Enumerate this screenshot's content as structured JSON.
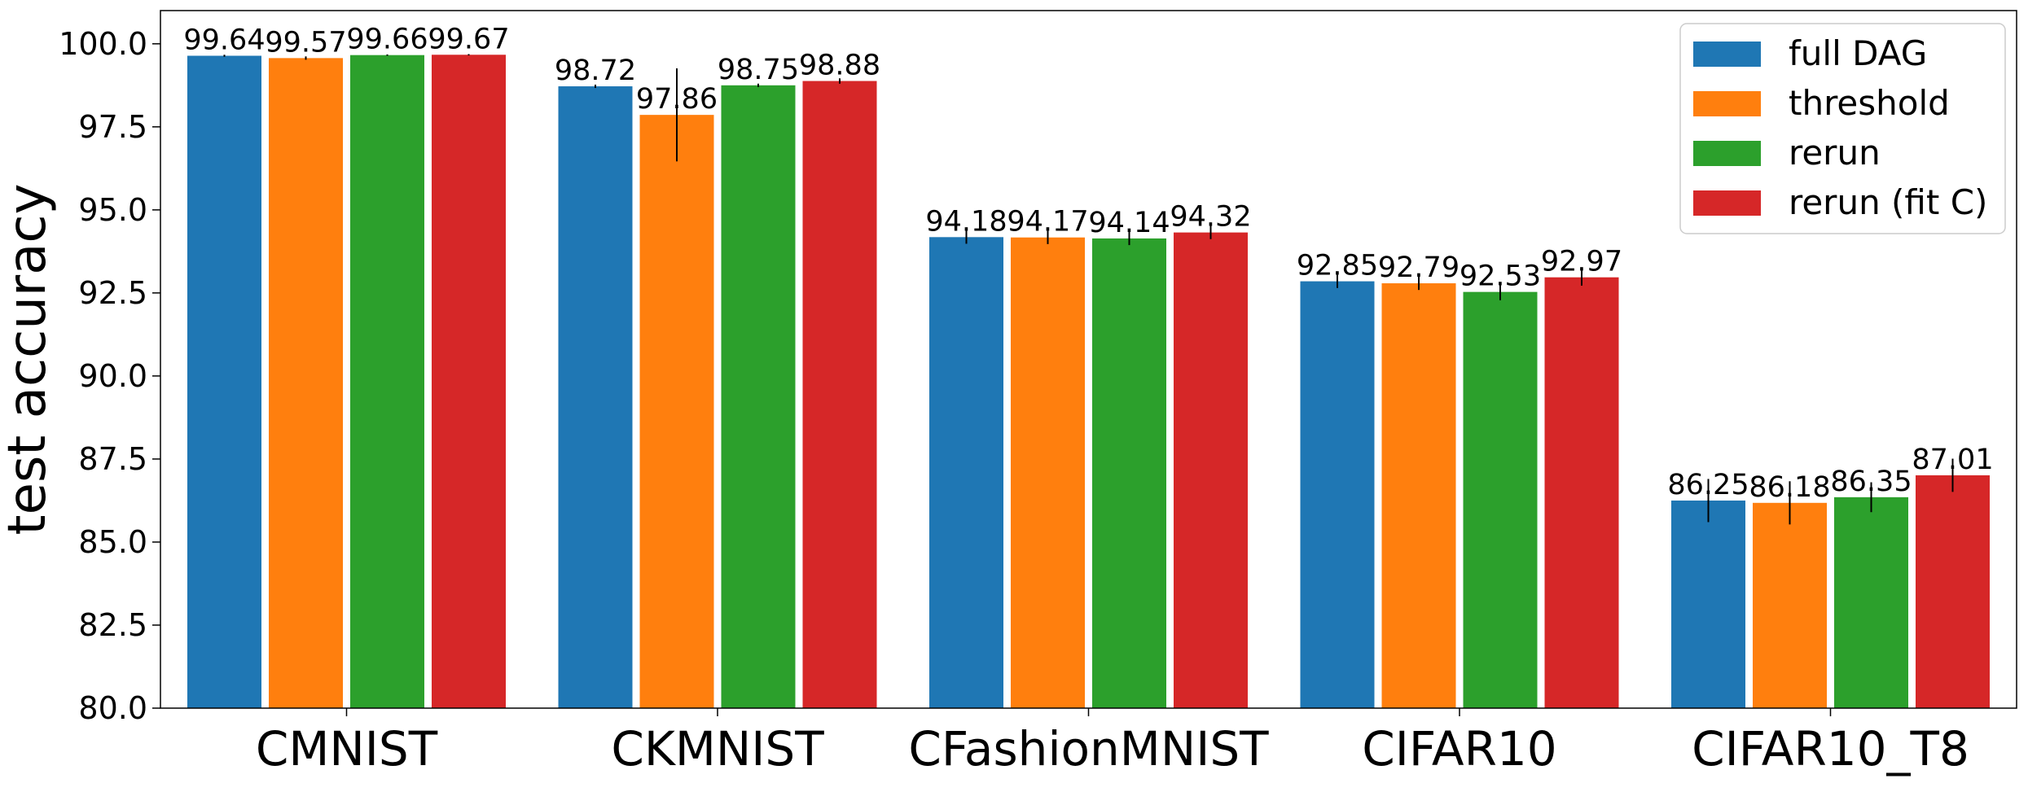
{
  "chart_data": {
    "type": "bar",
    "title": "",
    "xlabel": "",
    "ylabel": "test accuracy",
    "ylim": [
      80.0,
      101.0
    ],
    "yticks": [
      "80.0",
      "82.5",
      "85.0",
      "87.5",
      "90.0",
      "92.5",
      "95.0",
      "97.5",
      "100.0"
    ],
    "grid": false,
    "legend_position": "top-right",
    "categories": [
      "CMNIST",
      "CKMNIST",
      "CFashionMNIST",
      "CIFAR10",
      "CIFAR10_T8"
    ],
    "series": [
      {
        "name": "full DAG",
        "color": "#1f77b4",
        "values": [
          99.64,
          98.72,
          94.18,
          92.85,
          86.25
        ],
        "labels": [
          "99.64",
          "98.72",
          "94.18",
          "92.85",
          "86.25"
        ],
        "errors": [
          0.03,
          0.05,
          0.2,
          0.2,
          0.65
        ]
      },
      {
        "name": "threshold",
        "color": "#ff7f0e",
        "values": [
          99.57,
          97.86,
          94.17,
          92.79,
          86.18
        ],
        "labels": [
          "99.57",
          "97.86",
          "94.17",
          "92.79",
          "86.18"
        ],
        "errors": [
          0.05,
          1.4,
          0.2,
          0.2,
          0.65
        ]
      },
      {
        "name": "rerun",
        "color": "#2ca02c",
        "values": [
          99.66,
          98.75,
          94.14,
          92.53,
          86.35
        ],
        "labels": [
          "99.66",
          "98.75",
          "94.14",
          "92.53",
          "86.35"
        ],
        "errors": [
          0.02,
          0.05,
          0.2,
          0.25,
          0.45
        ]
      },
      {
        "name": "rerun (fit C)",
        "color": "#d62728",
        "values": [
          99.67,
          98.88,
          94.32,
          92.97,
          87.01
        ],
        "labels": [
          "99.67",
          "98.88",
          "94.32",
          "92.97",
          "87.01"
        ],
        "errors": [
          0.02,
          0.08,
          0.2,
          0.25,
          0.5
        ]
      }
    ]
  }
}
